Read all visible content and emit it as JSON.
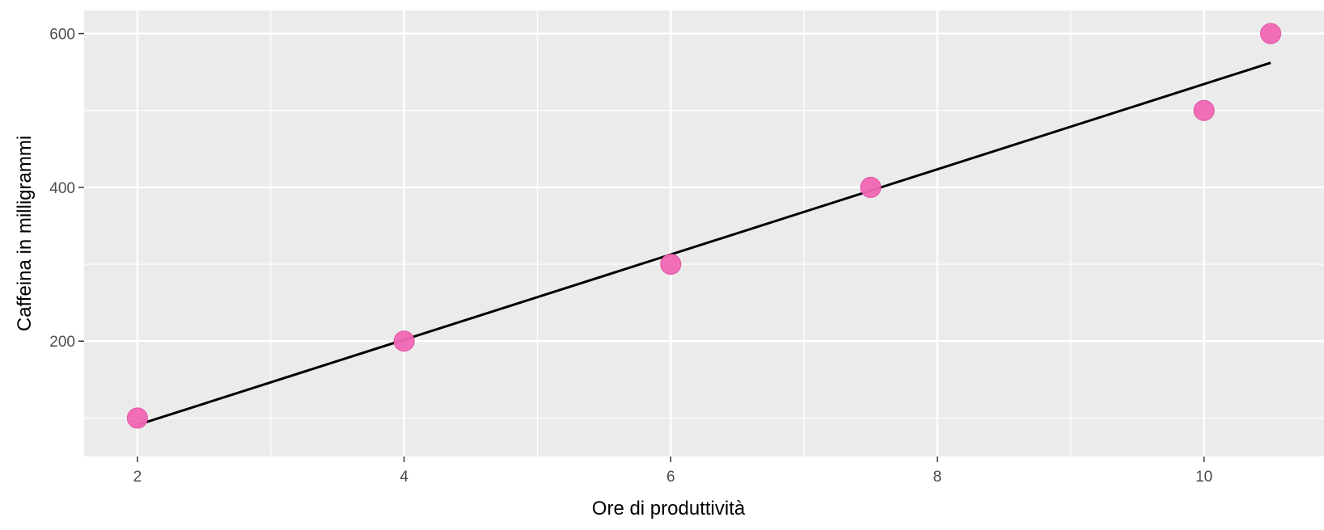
{
  "chart_data": {
    "type": "scatter",
    "xlabel": "Ore di produttività",
    "ylabel": "Caffeina in milligrammi",
    "xlim": [
      1.6,
      10.9
    ],
    "ylim": [
      50,
      630
    ],
    "x_ticks": [
      2,
      4,
      6,
      8,
      10
    ],
    "x_tick_labels": [
      "2",
      "4",
      "6",
      "8",
      "10"
    ],
    "x_minor_ticks": [
      3,
      5,
      7,
      9
    ],
    "y_ticks": [
      200,
      400,
      600
    ],
    "y_tick_labels": [
      "200",
      "400",
      "600"
    ],
    "y_minor_ticks": [
      100,
      300,
      500
    ],
    "grid": true,
    "legend": "none",
    "series": [
      {
        "kind": "points",
        "x": [
          2,
          4,
          6,
          7.5,
          10,
          10.5
        ],
        "y": [
          100,
          200,
          300,
          400,
          500,
          600
        ]
      },
      {
        "kind": "line",
        "x": [
          2,
          10.5
        ],
        "y": [
          91,
          562
        ]
      }
    ],
    "colors": {
      "panel_background": "#ebebeb",
      "grid": "#ffffff",
      "points": "#f266b5",
      "line": "#000000"
    }
  }
}
